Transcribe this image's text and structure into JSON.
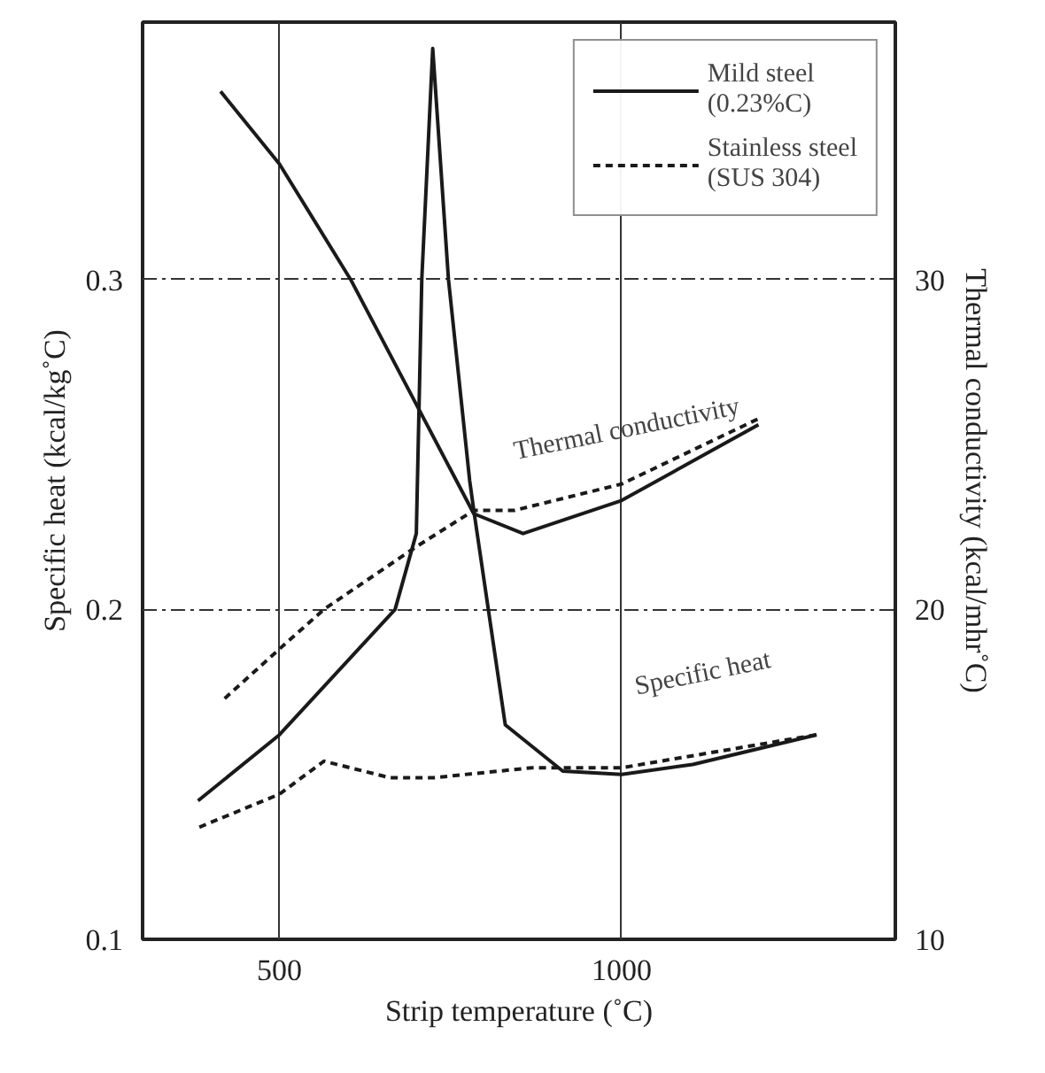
{
  "chart_data": {
    "type": "line",
    "xlabel": "Strip temperature (˚C)",
    "ylabel": "Specific heat (kcal/kg˚C)",
    "y2label": "Thermal conductivity (kcal/mhr˚C)",
    "xlim": [
      300,
      1400
    ],
    "xticks": [
      500,
      1000
    ],
    "ylim": [
      0.1,
      0.378
    ],
    "yticks": [
      0.1,
      0.2,
      0.3
    ],
    "y2lim": [
      10,
      37.8
    ],
    "y2ticks": [
      10,
      20,
      30
    ],
    "grid": true,
    "legend": "top right",
    "series": [
      {
        "name": "Mild steel\n(0.23%C)",
        "color": "#1a1a1a",
        "line_style": "solid",
        "x": [
          381,
          500,
          669,
          700,
          708,
          724,
          747,
          778,
          784,
          830,
          914,
          1000,
          1104,
          1285
        ],
        "values": [
          0.142,
          0.162,
          0.2,
          0.223,
          0.3,
          0.37,
          0.3,
          0.239,
          0.23,
          0.165,
          0.151,
          0.15,
          0.153,
          0.162
        ]
      },
      {
        "name": "Stainless steel\n(SUS 304)",
        "color": "#1a1a1a",
        "line_style": "dashed",
        "x": [
          383,
          500,
          565,
          661,
          726,
          869,
          1000,
          1285
        ],
        "values": [
          0.134,
          0.144,
          0.154,
          0.149,
          0.149,
          0.152,
          0.152,
          0.162
        ]
      },
      {
        "color": "#1a1a1a",
        "line_style": "solid",
        "axis": "y2",
        "x": [
          414,
          500,
          604,
          713,
          784,
          856,
          1000,
          1200
        ],
        "values": [
          35.7,
          33.5,
          30.0,
          25.7,
          22.9,
          22.3,
          23.3,
          25.6
        ]
      },
      {
        "color": "#1a1a1a",
        "line_style": "dashed",
        "axis": "y2",
        "x": [
          420,
          500,
          565,
          700,
          784,
          843,
          1000,
          1202
        ],
        "values": [
          17.3,
          18.8,
          20.0,
          21.9,
          23.0,
          23.0,
          23.8,
          25.8
        ]
      }
    ],
    "annotations": [
      "Thermal conductivity",
      "Specific heat"
    ]
  }
}
